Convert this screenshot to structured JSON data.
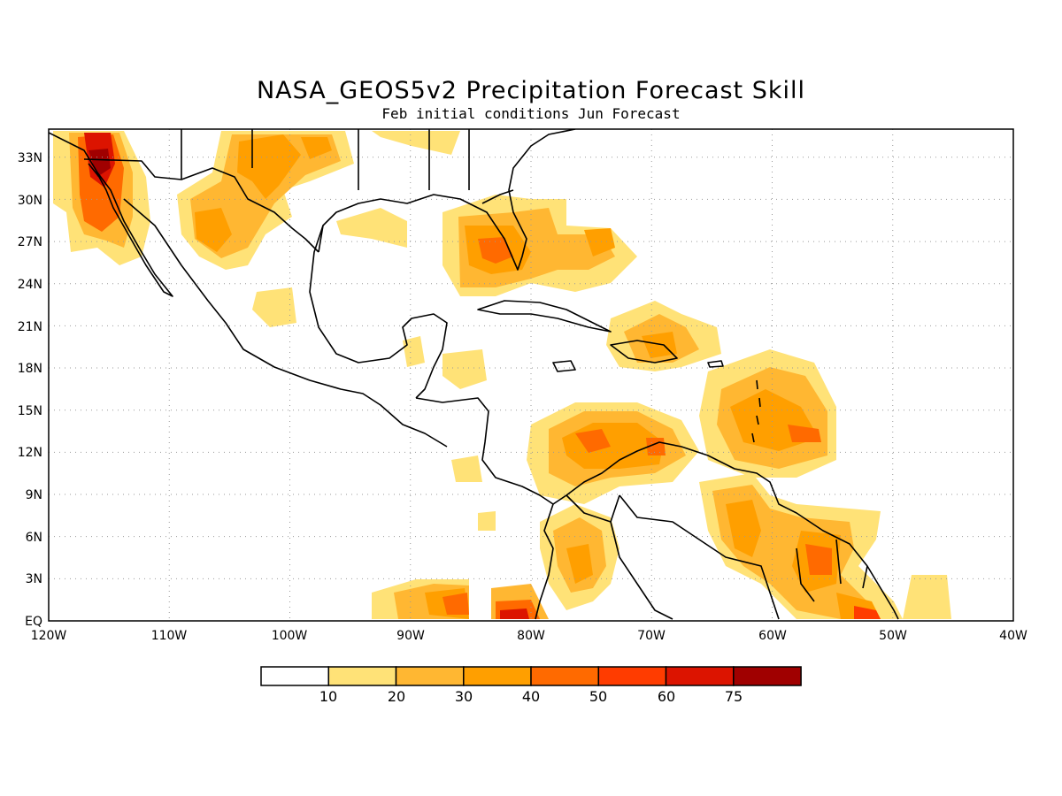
{
  "map": {
    "title": "NASA_GEOS5v2 Precipitation Forecast Skill",
    "subtitle": "Feb initial conditions  Jun Forecast",
    "lon_labels": [
      "120W",
      "110W",
      "100W",
      "90W",
      "80W",
      "70W",
      "60W",
      "50W",
      "40W"
    ],
    "lat_labels": [
      "EQ",
      "3N",
      "6N",
      "9N",
      "12N",
      "15N",
      "18N",
      "21N",
      "24N",
      "27N",
      "30N",
      "33N"
    ],
    "extent": {
      "lon_min": -120,
      "lon_max": -40,
      "lat_min": 0,
      "lat_max": 35
    },
    "grid": "dotted"
  },
  "colorbar": {
    "labels": [
      "10",
      "20",
      "30",
      "40",
      "50",
      "60",
      "75"
    ],
    "colors": [
      "#ffffff",
      "#ffe277",
      "#ffb732",
      "#ff9f00",
      "#ff6a00",
      "#ff3c00",
      "#dc1400",
      "#a00000"
    ]
  }
}
